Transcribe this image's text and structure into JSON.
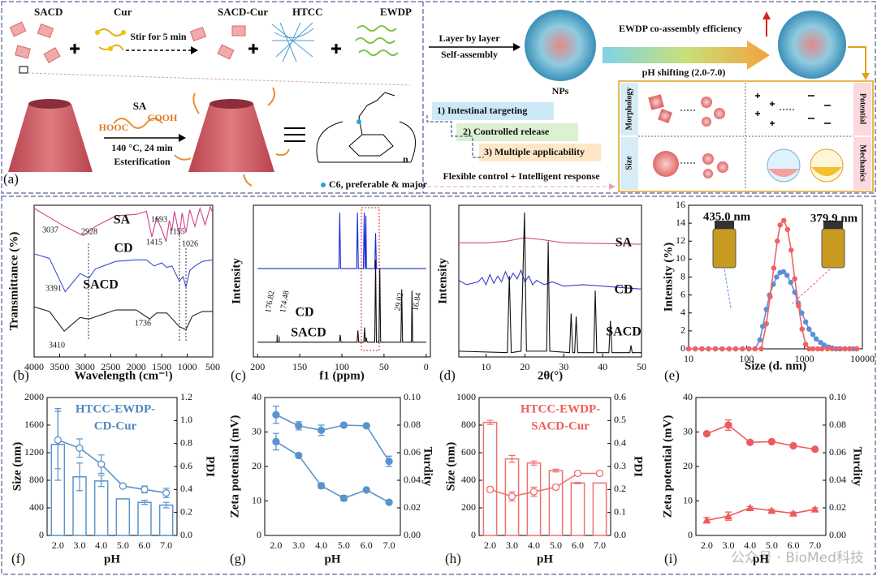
{
  "diagram": {
    "panel_label": "(a)",
    "left": {
      "sacd": "SACD",
      "cur": "Cur",
      "stir": "Stir for 5 min",
      "sacd_cur": "SACD-Cur",
      "htcc": "HTCC",
      "ewdp": "EWDP",
      "sa": "SA",
      "hooc": "HOOC",
      "cooh": "COOH",
      "condition": "140 °C, 24 min",
      "reaction": "Esterification",
      "n": "n",
      "c6_note": "C6, preferable & major"
    },
    "right": {
      "step1": "Layer by layer",
      "step2": "Self-assembly",
      "nps": "NPs",
      "efficiency": "EWDP co-assembly efficiency",
      "ph_shift": "pH shifting (2.0-7.0)",
      "features": [
        "1) Intestinal targeting",
        "2) Controlled release",
        "3) Multiple applicability"
      ],
      "summary": "Flexible control + Intelligent response",
      "properties": [
        "Morphology",
        "Potential",
        "Size",
        "Mechanics"
      ]
    }
  },
  "watermark": "公众号 · BioMed科技",
  "chart_data": [
    {
      "type": "line",
      "panel_label": "(b)",
      "xlabel": "Wavelength (cm⁻¹)",
      "ylabel": "Transmittance (%)",
      "xlim": [
        4000,
        500
      ],
      "xticks": [
        4000,
        3500,
        3000,
        2500,
        2000,
        1500,
        1000,
        500
      ],
      "ylim": [
        0,
        10
      ],
      "series": [
        {
          "name": "SA",
          "color": "#d0408f",
          "x": [
            4000,
            3700,
            3400,
            3037,
            2800,
            2400,
            2000,
            1800,
            1693,
            1600,
            1500,
            1415,
            1350,
            1300,
            1250,
            1155,
            1100,
            1026,
            950,
            850,
            750,
            650,
            550,
            500
          ],
          "values": [
            9.8,
            9.2,
            8.6,
            8.0,
            8.6,
            9.3,
            9.4,
            9.6,
            7.9,
            9.2,
            8.4,
            7.6,
            9.0,
            8.3,
            9.6,
            8.0,
            9.5,
            8.2,
            9.7,
            8.6,
            9.8,
            8.7,
            9.9,
            9.5
          ]
        },
        {
          "name": "CD",
          "color": "#3a4fd0",
          "x": [
            4000,
            3700,
            3391,
            3100,
            2928,
            2800,
            2400,
            2000,
            1800,
            1650,
            1500,
            1400,
            1300,
            1155,
            1080,
            1026,
            950,
            850,
            700,
            500
          ],
          "values": [
            6.8,
            6.5,
            4.3,
            5.5,
            5.2,
            5.8,
            6.3,
            6.4,
            6.4,
            6.0,
            6.2,
            5.9,
            6.0,
            5.0,
            5.3,
            4.6,
            5.7,
            6.0,
            6.3,
            6.4
          ]
        },
        {
          "name": "SACD",
          "color": "#222222",
          "x": [
            4000,
            3700,
            3410,
            3100,
            2928,
            2400,
            2000,
            1736,
            1600,
            1400,
            1155,
            1026,
            900,
            700,
            500
          ],
          "values": [
            3.3,
            3.0,
            1.7,
            2.6,
            2.5,
            3.1,
            3.1,
            2.5,
            2.9,
            2.9,
            2.0,
            1.8,
            2.7,
            3.0,
            3.0
          ]
        }
      ],
      "annotations": [
        "3037",
        "2928",
        "1693",
        "1415",
        "1155",
        "1026",
        "3391",
        "1736",
        "3410"
      ]
    },
    {
      "type": "line",
      "panel_label": "(c)",
      "xlabel": "f1 (ppm)",
      "ylabel": "Intensity",
      "xlim": [
        205,
        -5
      ],
      "xticks": [
        200,
        150,
        100,
        50,
        0
      ],
      "ylim": [
        0,
        10.3
      ],
      "series": [
        {
          "name": "CD",
          "color": "#1a2bd6",
          "x": [
            200,
            103.5,
            102.5,
            101.5,
            82.5,
            81.5,
            80.5,
            74.5,
            73.5,
            72.5,
            72.2,
            71.5,
            70.8,
            61,
            60,
            59,
            0
          ],
          "values": [
            6,
            6,
            9.8,
            6,
            6,
            9.8,
            6,
            6,
            9.8,
            6,
            6,
            9.6,
            6,
            6,
            8.4,
            6,
            6
          ]
        },
        {
          "name": "SACD",
          "color": "#111111",
          "x": [
            200,
            177,
            176.8,
            176.6,
            174.6,
            174.5,
            174.3,
            103,
            102,
            101,
            82,
            81,
            80,
            74,
            73,
            72,
            71,
            70,
            61,
            60,
            59,
            56,
            55,
            54,
            30,
            29,
            28,
            17.5,
            16.8,
            16,
            0
          ],
          "values": [
            1,
            1,
            1.5,
            1,
            1,
            1.4,
            1,
            1,
            1.5,
            1,
            1,
            1.8,
            1,
            1,
            2,
            1,
            1.3,
            1,
            1,
            6.6,
            1,
            1,
            6.0,
            1,
            1,
            4.6,
            1,
            1,
            4.5,
            1,
            1
          ]
        }
      ],
      "annotations": [
        "176.82",
        "174.48",
        "29.02",
        "16.84"
      ]
    },
    {
      "type": "line",
      "panel_label": "(d)",
      "xlabel": "2θ(°)",
      "ylabel": "Intensity",
      "xlim": [
        3,
        50
      ],
      "xticks": [
        10,
        20,
        30,
        40,
        50
      ],
      "ylim": [
        0,
        10.5
      ],
      "series": [
        {
          "name": "SA",
          "color": "#d2458e",
          "x": [
            3,
            10,
            15,
            20,
            25,
            30,
            40,
            50
          ],
          "values": [
            7.9,
            7.9,
            8.0,
            8.25,
            8.1,
            7.9,
            7.85,
            7.8
          ]
        },
        {
          "name": "CD",
          "color": "#3b3bd0",
          "x": [
            3,
            5,
            8,
            9,
            10,
            11,
            12,
            13,
            14,
            15,
            16,
            17,
            18,
            19,
            20,
            21,
            22,
            23,
            25,
            27,
            30,
            35,
            40,
            50
          ],
          "values": [
            5.3,
            5.0,
            5.2,
            5.5,
            5.0,
            5.7,
            5.1,
            5.6,
            5.2,
            5.9,
            5.3,
            5.8,
            5.4,
            6.0,
            5.2,
            5.6,
            5.0,
            5.3,
            5.0,
            5.2,
            4.9,
            5.0,
            4.9,
            4.7
          ]
        },
        {
          "name": "SACD",
          "color": "#111111",
          "x": [
            3,
            15.5,
            16,
            16.5,
            19,
            19.9,
            20.4,
            25.6,
            26,
            26.4,
            31.5,
            31.9,
            32.3,
            32.8,
            33.2,
            33.6,
            37.7,
            38.1,
            38.5,
            41.6,
            42,
            42.4,
            47,
            47.3,
            47.6,
            50
          ],
          "values": [
            0.4,
            0.3,
            5.6,
            0.3,
            0.4,
            10,
            0.4,
            0.4,
            8.0,
            0.4,
            0.3,
            3.0,
            0.3,
            0.3,
            2.8,
            0.3,
            0.3,
            4.6,
            0.3,
            0.3,
            2.5,
            0.3,
            0.3,
            0.8,
            0.3,
            0.3
          ]
        }
      ]
    },
    {
      "type": "line",
      "panel_label": "(e)",
      "xlabel": "Size (d. nm)",
      "ylabel": "Intensity (%)",
      "xscale": "log",
      "xlim": [
        10,
        10000
      ],
      "xticks": [
        10,
        100,
        1000,
        10000
      ],
      "ylim": [
        0,
        16
      ],
      "yticks": [
        0,
        2,
        4,
        6,
        8,
        10,
        12,
        14,
        16
      ],
      "series": [
        {
          "color": "#5b8fd8",
          "marker": "circle",
          "x": [
            10,
            13,
            17,
            22,
            29,
            38,
            50,
            65,
            85,
            110,
            140,
            170,
            190,
            220,
            250,
            290,
            330,
            380,
            435,
            500,
            580,
            680,
            780,
            900,
            1050,
            1200,
            1400,
            1600,
            1900,
            2200,
            2600,
            3000,
            3500,
            4200,
            5000,
            6000,
            7000,
            8000
          ],
          "values": [
            0,
            0,
            0,
            0,
            0,
            0,
            0,
            0,
            0,
            0,
            0,
            1.0,
            2.5,
            4.4,
            6.0,
            7.2,
            8.0,
            8.5,
            8.6,
            8.2,
            7.4,
            6.3,
            5.1,
            4.0,
            3.0,
            2.2,
            1.6,
            1.1,
            0.7,
            0.4,
            0.2,
            0.1,
            0,
            0,
            0,
            0,
            0,
            0
          ]
        },
        {
          "color": "#f06262",
          "marker": "circle",
          "x": [
            10,
            13,
            17,
            22,
            29,
            38,
            50,
            65,
            85,
            110,
            140,
            180,
            220,
            255,
            295,
            340,
            380,
            440,
            510,
            590,
            680,
            790,
            910,
            1050,
            1200,
            1400,
            1700,
            2000,
            2500,
            3000,
            4000,
            5000,
            6000,
            8000
          ],
          "values": [
            0,
            0,
            0,
            0,
            0,
            0,
            0,
            0,
            0,
            0,
            0,
            0,
            2.8,
            5.8,
            9.0,
            12.0,
            13.8,
            14.3,
            13.3,
            11.0,
            7.8,
            4.8,
            2.2,
            0.5,
            0,
            0,
            0,
            0,
            0,
            0,
            0,
            0,
            0,
            0
          ]
        }
      ],
      "annotations": [
        "435.0 nm",
        "379.9 nm"
      ]
    },
    {
      "type": "combo",
      "panel_label": "(f)",
      "title_lines": [
        "HTCC-EWDP-",
        "CD-Cur"
      ],
      "title_color": "#4f86c0",
      "xlabel": "pH",
      "ylabel": "Size (nm)",
      "y2label": "PDI",
      "categories": [
        "2.0",
        "3.0",
        "4.0",
        "5.0",
        "6.0",
        "7.0"
      ],
      "ylim": [
        0,
        2000
      ],
      "yticks": [
        0,
        400,
        800,
        1200,
        1600,
        2000
      ],
      "y2lim": [
        0,
        1.2
      ],
      "y2ticks": [
        {
          "value": 0,
          "label": "0.0"
        },
        0.2,
        0.4,
        0.6,
        0.8,
        {
          "value": 1,
          "label": "1.0"
        },
        1.2
      ],
      "series": [
        {
          "style": "bar",
          "color": "#5b93cc",
          "values": [
            1320,
            850,
            790,
            530,
            480,
            440
          ],
          "errors": [
            520,
            200,
            80,
            0,
            30,
            40
          ]
        },
        {
          "style": "line",
          "axis": "y2",
          "marker": "open-circle",
          "color": "#5b93cc",
          "values": [
            0.83,
            0.76,
            0.62,
            0.43,
            0.4,
            0.37
          ],
          "errors": [
            0.25,
            0.08,
            0.08,
            0.01,
            0.03,
            0.04
          ]
        }
      ]
    },
    {
      "type": "combo",
      "panel_label": "(g)",
      "xlabel": "pH",
      "ylabel": "Zeta potential (mV)",
      "y2label": "Turdity",
      "categories": [
        "2.0",
        "3.0",
        "4.0",
        "5.0",
        "6.0",
        "7.0"
      ],
      "ylim": [
        0,
        40
      ],
      "yticks": [
        0,
        10,
        20,
        30,
        40
      ],
      "y2lim": [
        0,
        0.1
      ],
      "y2ticks": [
        {
          "value": 0,
          "label": "0.00"
        },
        {
          "value": 0.02,
          "label": "0.02"
        },
        {
          "value": 0.04,
          "label": "0.04"
        },
        {
          "value": 0.06,
          "label": "0.06"
        },
        {
          "value": 0.08,
          "label": "0.08"
        },
        {
          "value": 0.1,
          "label": "0.10"
        }
      ],
      "series": [
        {
          "style": "line",
          "marker": "circle",
          "color": "#5b93cc",
          "values": [
            35,
            31.8,
            30.5,
            32,
            31.8,
            21.5
          ],
          "errors": [
            2.5,
            1.2,
            1.5,
            0.5,
            0.3,
            1.5
          ]
        },
        {
          "style": "line",
          "axis": "y2",
          "marker": "circle",
          "color": "#5b93cc",
          "values": [
            0.068,
            0.058,
            0.036,
            0.027,
            0.033,
            0.024
          ],
          "errors": [
            0.006,
            0.001,
            0.002,
            0.002,
            0.001,
            0.001
          ]
        }
      ]
    },
    {
      "type": "combo",
      "panel_label": "(h)",
      "title_lines": [
        "HTCC-EWDP-",
        "SACD-Cur"
      ],
      "title_color": "#ef5b5b",
      "xlabel": "pH",
      "ylabel": "Size (nm)",
      "y2label": "PDI",
      "categories": [
        "2.0",
        "3.0",
        "4.0",
        "5.0",
        "6.0",
        "7.0"
      ],
      "ylim": [
        0,
        1000
      ],
      "yticks": [
        0,
        200,
        400,
        600,
        800,
        1000
      ],
      "y2lim": [
        0,
        0.6
      ],
      "y2ticks": [
        {
          "value": 0,
          "label": "0.0"
        },
        0.1,
        0.2,
        0.3,
        0.4,
        0.5,
        0.6
      ],
      "series": [
        {
          "style": "bar",
          "color": "#f07070",
          "values": [
            820,
            555,
            525,
            470,
            380,
            380
          ],
          "errors": [
            15,
            25,
            15,
            10,
            5,
            0
          ]
        },
        {
          "style": "line",
          "axis": "y2",
          "marker": "open-circle",
          "color": "#f07070",
          "values": [
            0.2,
            0.17,
            0.19,
            0.21,
            0.27,
            0.27
          ],
          "errors": [
            0.01,
            0.02,
            0.02,
            0.01,
            0.01,
            0.01
          ]
        }
      ]
    },
    {
      "type": "combo",
      "panel_label": "(i)",
      "xlabel": "pH",
      "ylabel": "Zeta potential (mV)",
      "y2label": "Turdity",
      "categories": [
        "2.0",
        "3.0",
        "4.0",
        "5.0",
        "6.0",
        "7.0"
      ],
      "ylim": [
        0,
        40
      ],
      "yticks": [
        0,
        10,
        20,
        30,
        40
      ],
      "y2lim": [
        0,
        0.1
      ],
      "y2ticks": [
        {
          "value": 0,
          "label": "0.00"
        },
        {
          "value": 0.02,
          "label": "0.02"
        },
        {
          "value": 0.04,
          "label": "0.04"
        },
        {
          "value": 0.06,
          "label": "0.06"
        },
        {
          "value": 0.08,
          "label": "0.08"
        },
        {
          "value": 0.1,
          "label": "0.10"
        }
      ],
      "series": [
        {
          "style": "line",
          "marker": "circle",
          "color": "#ef5b5b",
          "values": [
            29.5,
            32,
            27,
            27.2,
            26,
            25
          ],
          "errors": [
            0.3,
            1.5,
            0.3,
            0.3,
            0.3,
            0.3
          ]
        },
        {
          "style": "line",
          "axis": "y2",
          "marker": "triangle",
          "color": "#ef5b5b",
          "values": [
            0.011,
            0.014,
            0.02,
            0.018,
            0.016,
            0.019
          ],
          "errors": [
            0.002,
            0.003,
            0.001,
            0.001,
            0.001,
            0.001
          ]
        }
      ]
    }
  ]
}
